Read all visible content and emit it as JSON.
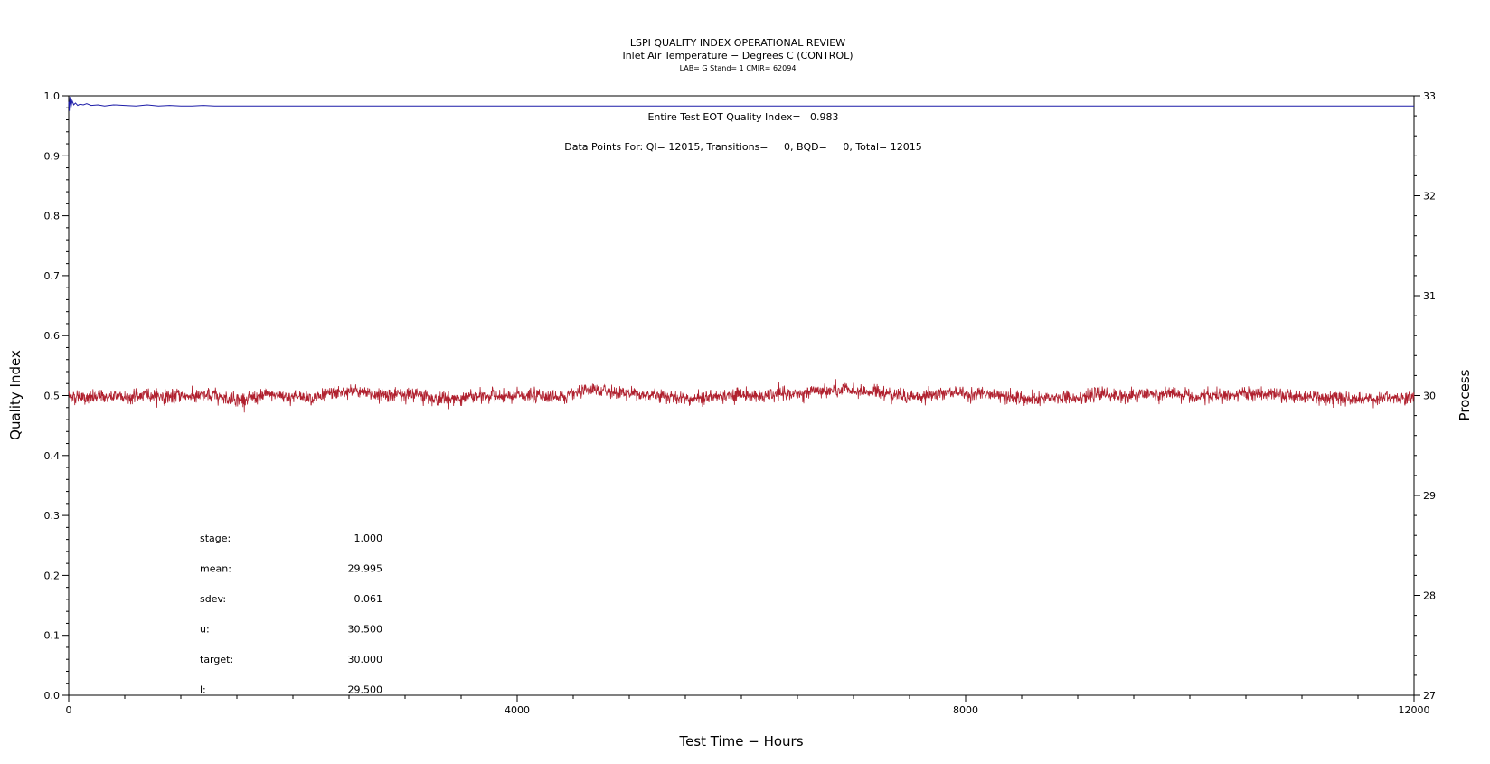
{
  "chart_data": {
    "type": "line",
    "title": "LSPI QUALITY INDEX OPERATIONAL REVIEW",
    "subtitle": "Inlet Air Temperature − Degrees C (CONTROL)",
    "subtitle2": "LAB= G Stand= 1 CMIR= 62094",
    "xlabel": "Test Time − Hours",
    "ylabel_left": "Quality Index",
    "ylabel_right": "Process",
    "xlim": [
      0,
      12000
    ],
    "ylim_left": [
      0.0,
      1.0
    ],
    "ylim_right": [
      27,
      33
    ],
    "x_ticks": [
      "0",
      "4000",
      "8000",
      "12000"
    ],
    "y_left_ticks": [
      "0.0",
      "0.1",
      "0.2",
      "0.3",
      "0.4",
      "0.5",
      "0.6",
      "0.7",
      "0.8",
      "0.9",
      "1.0"
    ],
    "y_right_ticks": [
      "27",
      "28",
      "29",
      "30",
      "31",
      "32",
      "33"
    ],
    "grid": false,
    "annotations": {
      "eot_quality_index": "Entire Test EOT Quality Index=   0.983",
      "data_points": "Data Points For: QI= 12015, Transitions=     0, BQD=     0, Total= 12015"
    },
    "stats": [
      {
        "label": "stage:",
        "value": "1.000"
      },
      {
        "label": "mean:",
        "value": "29.995"
      },
      {
        "label": "sdev:",
        "value": "0.061"
      },
      {
        "label": "u:",
        "value": "30.500"
      },
      {
        "label": "target:",
        "value": "30.000"
      },
      {
        "label": "l:",
        "value": "29.500"
      }
    ],
    "series": [
      {
        "axis": "left",
        "color": "#1c1ca8",
        "x": [
          0,
          5,
          10,
          20,
          30,
          45,
          60,
          80,
          100,
          130,
          160,
          200,
          260,
          320,
          400,
          500,
          600,
          700,
          800,
          900,
          1000,
          1100,
          1200,
          1300,
          1400,
          1600,
          2000,
          4000,
          6000,
          8000,
          10000,
          12000
        ],
        "values": [
          0.99,
          0.975,
          0.998,
          0.98,
          0.992,
          0.985,
          0.988,
          0.984,
          0.986,
          0.985,
          0.987,
          0.984,
          0.985,
          0.983,
          0.985,
          0.984,
          0.983,
          0.985,
          0.983,
          0.984,
          0.983,
          0.983,
          0.984,
          0.983,
          0.983,
          0.983,
          0.983,
          0.983,
          0.983,
          0.983,
          0.983,
          0.983
        ]
      },
      {
        "axis": "right",
        "color": "#b0202e",
        "mean": 29.995,
        "sdev": 0.061,
        "n": 12015,
        "x_range": [
          0,
          12000
        ]
      }
    ]
  }
}
